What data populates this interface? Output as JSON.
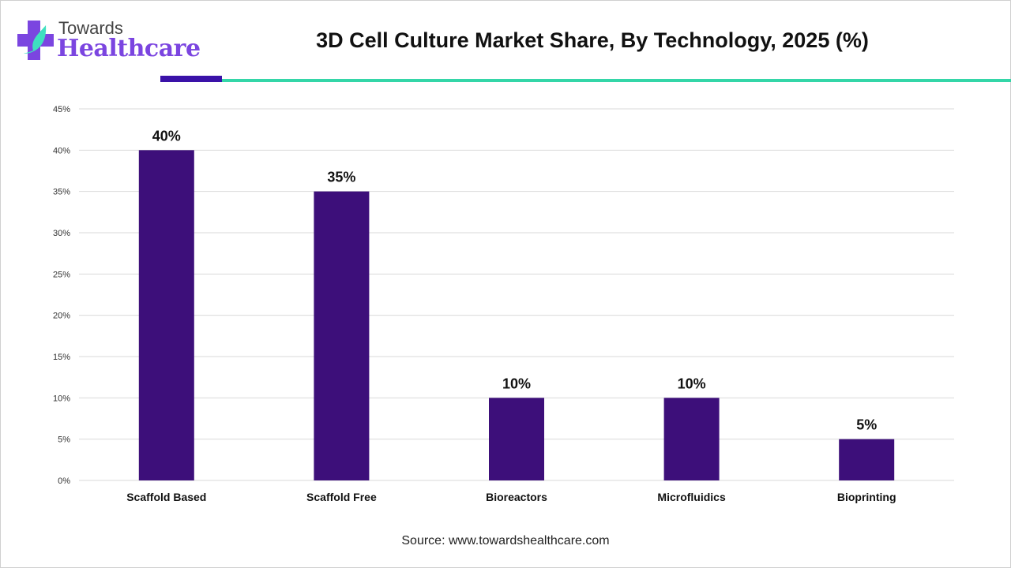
{
  "logo": {
    "line1": "Towards",
    "line2": "Healthcare"
  },
  "title": "3D Cell Culture Market Share, By Technology, 2025 (%)",
  "source": "Source: www.towardshealthcare.com",
  "colors": {
    "bar": "#3d0f7a",
    "accent_purple": "#3a12a8",
    "accent_teal": "#34d6a8",
    "grid": "#d9d9d9"
  },
  "chart_data": {
    "type": "bar",
    "title": "3D Cell Culture Market Share, By Technology, 2025 (%)",
    "categories": [
      "Scaffold Based",
      "Scaffold Free",
      "Bioreactors",
      "Microfluidics",
      "Bioprinting"
    ],
    "values": [
      40,
      35,
      10,
      10,
      5
    ],
    "data_labels": [
      "40%",
      "35%",
      "10%",
      "10%",
      "5%"
    ],
    "ylim": [
      0,
      45
    ],
    "yticks": [
      "0%",
      "5%",
      "10%",
      "15%",
      "20%",
      "25%",
      "30%",
      "35%",
      "40%",
      "45%"
    ],
    "grid": true,
    "legend": "none",
    "xlabel": "",
    "ylabel": ""
  }
}
